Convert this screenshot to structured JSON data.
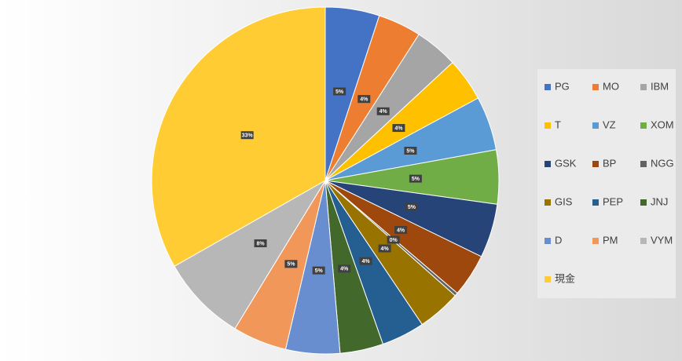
{
  "chart_data": {
    "type": "pie",
    "categories": [
      "PG",
      "MO",
      "IBM",
      "T",
      "VZ",
      "XOM",
      "GSK",
      "BP",
      "NGG",
      "GIS",
      "PEP",
      "JNJ",
      "D",
      "PM",
      "VYM",
      "現金"
    ],
    "values": [
      5,
      4,
      4,
      4,
      5,
      5,
      5,
      4,
      0.3,
      4,
      4,
      4,
      5,
      5,
      8,
      33
    ],
    "value_labels": [
      "5%",
      "4%",
      "4%",
      "4%",
      "5%",
      "5%",
      "5%",
      "4%",
      "0%",
      "4%",
      "4%",
      "4%",
      "5%",
      "5%",
      "8%",
      "33%"
    ],
    "colors": [
      "#4472c4",
      "#ed7d31",
      "#a5a5a5",
      "#ffc000",
      "#5b9bd5",
      "#70ad47",
      "#264478",
      "#9e480e",
      "#636363",
      "#997300",
      "#255e91",
      "#43682b",
      "#698ed0",
      "#f1975a",
      "#b7b7b7",
      "#ffcd33"
    ],
    "legend": "right"
  }
}
